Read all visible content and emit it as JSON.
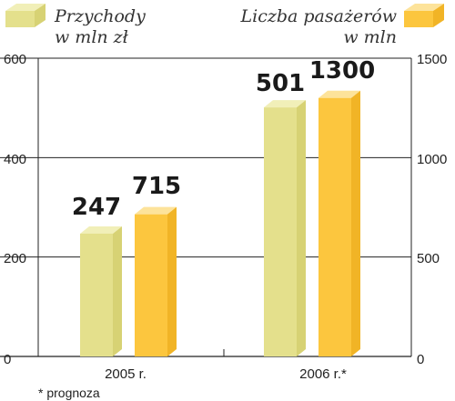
{
  "chart_data": {
    "type": "bar",
    "categories": [
      "2005 r.",
      "2006 r.*"
    ],
    "series": [
      {
        "name": "Przychody w mln zł",
        "axis": "left",
        "values": [
          247,
          501
        ],
        "color": "#e4e08c",
        "color_top": "#f1efb8",
        "color_side": "#d7d274"
      },
      {
        "name": "Liczba pasażerów w mln",
        "axis": "right",
        "values": [
          715,
          1300
        ],
        "color": "#fcc63e",
        "color_top": "#fde39a",
        "color_side": "#f1b426"
      }
    ],
    "yleft": {
      "range": [
        0,
        600
      ],
      "ticks": [
        "0",
        "200",
        "400",
        "600"
      ]
    },
    "yright": {
      "range": [
        0,
        1500
      ],
      "ticks": [
        "0",
        "500",
        "1000",
        "1500"
      ]
    },
    "grid": true,
    "legend": [
      {
        "line1": "Przychody",
        "line2": "w mln zł",
        "position": "top-left"
      },
      {
        "line1": "Liczba pasażerów",
        "line2": "w mln",
        "position": "top-right"
      }
    ],
    "data_labels": [
      "247",
      "715",
      "501",
      "1300"
    ],
    "footnote": "* prognoza"
  }
}
